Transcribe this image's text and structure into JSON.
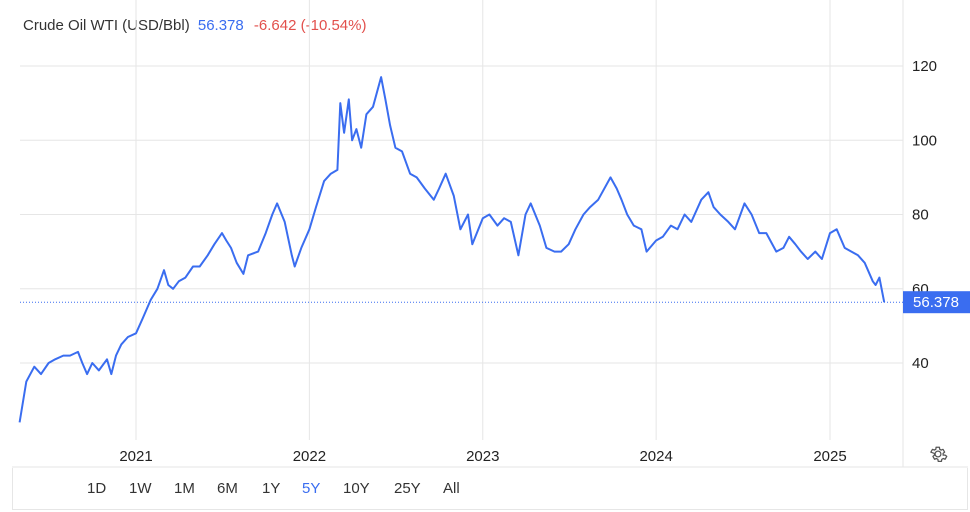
{
  "header": {
    "name": "Crude Oil WTI (USD/Bbl)",
    "price": "56.378",
    "change": "-6.642 (-10.54%)"
  },
  "colors": {
    "line": "#3a6df0",
    "price_tag": "#3a6df0",
    "negative": "#e2504c",
    "grid": "#e6e6e6"
  },
  "ranges": [
    "1D",
    "1W",
    "1M",
    "6M",
    "1Y",
    "5Y",
    "10Y",
    "25Y",
    "All"
  ],
  "active_range": "5Y",
  "settings_icon": "gear-icon",
  "chart_data": {
    "type": "line",
    "title": "Crude Oil WTI (USD/Bbl)",
    "xlabel": "",
    "ylabel": "",
    "ylim": [
      20,
      130
    ],
    "yticks": [
      40,
      60,
      80,
      100,
      120
    ],
    "xticks": [
      "2021",
      "2022",
      "2023",
      "2024",
      "2025"
    ],
    "grid": true,
    "last_value_label": "56.378",
    "last_value": 56.378,
    "series": [
      {
        "x": [
          "2020-05-01",
          "2020-05-15",
          "2020-06-01",
          "2020-06-15",
          "2020-07-01",
          "2020-07-15",
          "2020-08-01",
          "2020-08-15",
          "2020-09-01",
          "2020-09-10",
          "2020-09-20",
          "2020-10-01",
          "2020-10-15",
          "2020-11-01",
          "2020-11-10",
          "2020-11-20",
          "2020-12-01",
          "2020-12-15",
          "2021-01-01",
          "2021-01-15",
          "2021-02-01",
          "2021-02-15",
          "2021-03-01",
          "2021-03-10",
          "2021-03-20",
          "2021-04-01",
          "2021-04-15",
          "2021-05-01",
          "2021-05-15",
          "2021-06-01",
          "2021-06-15",
          "2021-07-01",
          "2021-07-10",
          "2021-07-20",
          "2021-08-01",
          "2021-08-15",
          "2021-08-25",
          "2021-09-15",
          "2021-10-01",
          "2021-10-15",
          "2021-10-25",
          "2021-11-10",
          "2021-11-25",
          "2021-12-01",
          "2021-12-15",
          "2022-01-01",
          "2022-01-15",
          "2022-02-01",
          "2022-02-15",
          "2022-03-01",
          "2022-03-07",
          "2022-03-15",
          "2022-03-25",
          "2022-04-01",
          "2022-04-10",
          "2022-04-20",
          "2022-05-01",
          "2022-05-15",
          "2022-06-01",
          "2022-06-10",
          "2022-06-20",
          "2022-07-01",
          "2022-07-15",
          "2022-08-01",
          "2022-08-15",
          "2022-09-01",
          "2022-09-20",
          "2022-10-01",
          "2022-10-15",
          "2022-11-01",
          "2022-11-15",
          "2022-12-01",
          "2022-12-10",
          "2023-01-01",
          "2023-01-15",
          "2023-02-01",
          "2023-02-15",
          "2023-03-01",
          "2023-03-17",
          "2023-04-01",
          "2023-04-12",
          "2023-05-01",
          "2023-05-15",
          "2023-06-01",
          "2023-06-15",
          "2023-07-01",
          "2023-07-15",
          "2023-08-01",
          "2023-08-15",
          "2023-09-01",
          "2023-09-27",
          "2023-10-10",
          "2023-10-20",
          "2023-11-01",
          "2023-11-15",
          "2023-12-01",
          "2023-12-12",
          "2024-01-01",
          "2024-01-15",
          "2024-02-01",
          "2024-02-15",
          "2024-03-01",
          "2024-03-15",
          "2024-04-05",
          "2024-04-20",
          "2024-05-01",
          "2024-05-15",
          "2024-06-01",
          "2024-06-15",
          "2024-07-05",
          "2024-07-20",
          "2024-08-05",
          "2024-08-20",
          "2024-09-10",
          "2024-09-25",
          "2024-10-07",
          "2024-10-20",
          "2024-11-01",
          "2024-11-15",
          "2024-12-01",
          "2024-12-15",
          "2025-01-01",
          "2025-01-15",
          "2025-02-01",
          "2025-02-15",
          "2025-03-01",
          "2025-03-15",
          "2025-04-01",
          "2025-04-07",
          "2025-04-15",
          "2025-04-25"
        ],
        "y": [
          24,
          35,
          39,
          37,
          40,
          41,
          42,
          42,
          43,
          40,
          37,
          40,
          38,
          41,
          37,
          42,
          45,
          47,
          48,
          52,
          57,
          60,
          65,
          61,
          60,
          62,
          63,
          66,
          66,
          69,
          72,
          75,
          73,
          71,
          67,
          64,
          69,
          70,
          75,
          80,
          83,
          78,
          69,
          66,
          71,
          76,
          82,
          89,
          91,
          92,
          110,
          102,
          111,
          100,
          103,
          98,
          107,
          109,
          117,
          111,
          104,
          98,
          97,
          91,
          90,
          87,
          84,
          87,
          91,
          85,
          76,
          80,
          72,
          79,
          80,
          77,
          79,
          78,
          69,
          80,
          83,
          77,
          71,
          70,
          70,
          72,
          76,
          80,
          82,
          84,
          90,
          87,
          84,
          80,
          77,
          76,
          70,
          73,
          74,
          77,
          76,
          80,
          78,
          84,
          86,
          82,
          80,
          78,
          76,
          83,
          80,
          75,
          75,
          70,
          71,
          74,
          72,
          70,
          68,
          70,
          68,
          75,
          76,
          71,
          70,
          69,
          67,
          62,
          61,
          63,
          56.378
        ]
      }
    ]
  }
}
